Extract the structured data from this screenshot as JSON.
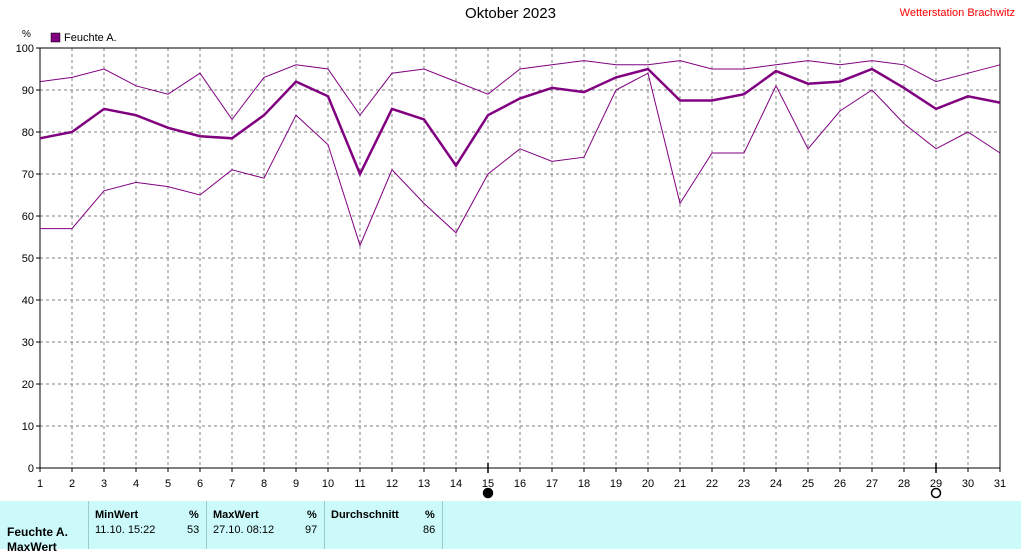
{
  "title": "Oktober 2023",
  "station": "Wetterstation Brachwitz",
  "colors": {
    "series": "#800080",
    "grid": "#808080",
    "station": "#ff0000",
    "panel": "#ccfafa"
  },
  "chart_data": {
    "type": "line",
    "title": "Oktober 2023",
    "ylabel": "%",
    "legend": {
      "label": "Feuchte A.",
      "position": "top-left"
    },
    "ylim": [
      0,
      100
    ],
    "y_ticks": [
      0,
      10,
      20,
      30,
      40,
      50,
      60,
      70,
      80,
      90,
      100
    ],
    "x": [
      1,
      2,
      3,
      4,
      5,
      6,
      7,
      8,
      9,
      10,
      11,
      12,
      13,
      14,
      15,
      16,
      17,
      18,
      19,
      20,
      21,
      22,
      23,
      24,
      25,
      26,
      27,
      28,
      29,
      30,
      31
    ],
    "grid": true,
    "series": [
      {
        "name": "Feuchte A.",
        "role": "mean",
        "values": [
          78.5,
          80,
          85.5,
          84,
          81,
          79,
          78.5,
          84,
          92,
          88.5,
          70,
          85.5,
          83,
          72,
          84,
          88,
          90.5,
          89.5,
          93,
          95,
          87.5,
          87.5,
          89,
          94.5,
          91.5,
          92,
          95,
          90.5,
          85.5,
          88.5,
          87
        ]
      },
      {
        "role": "max",
        "values": [
          92,
          93,
          95,
          91,
          89,
          94,
          83,
          93,
          96,
          95,
          84,
          94,
          95,
          92,
          89,
          95,
          96,
          97,
          96,
          96,
          97,
          95,
          95,
          96,
          97,
          96,
          97,
          96,
          92,
          94,
          96
        ]
      },
      {
        "role": "min",
        "values": [
          57,
          57,
          66,
          68,
          67,
          65,
          71,
          69,
          84,
          77,
          53,
          71,
          63,
          56,
          70,
          76,
          73,
          74,
          90,
          94,
          63,
          75,
          75,
          91,
          76,
          85,
          90,
          82,
          76,
          80,
          75
        ]
      }
    ],
    "moon_phases": [
      {
        "day": 15,
        "phase": "new"
      },
      {
        "day": 29,
        "phase": "full"
      }
    ]
  },
  "stats": {
    "row_label": "Feuchte A.",
    "row_sublabel": "MaxWert",
    "min": {
      "header": "MinWert",
      "unit": "%",
      "date": "11.10.  15:22",
      "value": "53"
    },
    "max": {
      "header": "MaxWert",
      "unit": "%",
      "date": "27.10.  08:12",
      "value": "97"
    },
    "avg": {
      "header": "Durchschnitt",
      "unit": "%",
      "value": "86"
    }
  }
}
